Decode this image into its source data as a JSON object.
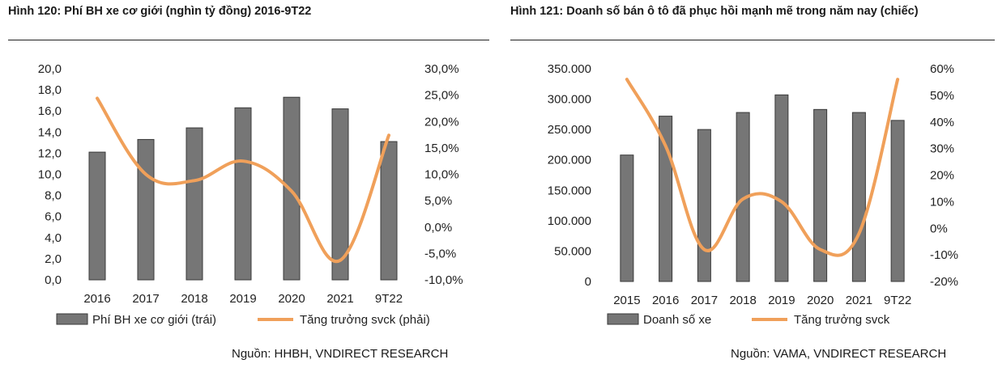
{
  "charts": {
    "left": {
      "title": "Hình 120: Phí BH xe cơ giới (nghìn tỷ đồng) 2016-9T22",
      "source": "Nguồn: HHBH, VNDIRECT RESEARCH"
    },
    "right": {
      "title": "Hình 121: Doanh số bán ô tô đã phục hồi mạnh mẽ trong năm nay (chiếc)",
      "source": "Nguồn: VAMA, VNDIRECT RESEARCH"
    }
  },
  "colors": {
    "bar": "#767676",
    "bar_edge": "#3a3a3a",
    "line": "#f0a05a"
  },
  "chart_data": [
    {
      "type": "bar",
      "categories": [
        "2016",
        "2017",
        "2018",
        "2019",
        "2020",
        "2021",
        "9T22"
      ],
      "series": [
        {
          "name": "Phí BH xe cơ giới (trái)",
          "type": "bar",
          "axis": "left",
          "values": [
            12.1,
            13.3,
            14.4,
            16.3,
            17.3,
            16.2,
            13.1
          ]
        },
        {
          "name": "Tăng trưởng svck (phải)",
          "type": "line",
          "axis": "right",
          "values": [
            24.4,
            10.0,
            8.8,
            12.5,
            6.8,
            -6.3,
            17.4
          ]
        }
      ],
      "y_left": {
        "min": 0,
        "max": 20,
        "ticks": [
          "0,0",
          "2,0",
          "4,0",
          "6,0",
          "8,0",
          "10,0",
          "12,0",
          "14,0",
          "16,0",
          "18,0",
          "20,0"
        ]
      },
      "y_right": {
        "min": -10,
        "max": 30,
        "ticks": [
          "-10,0%",
          "-5,0%",
          "0,0%",
          "5,0%",
          "10,0%",
          "15,0%",
          "20,0%",
          "25,0%",
          "30,0%"
        ]
      },
      "legend": "bottom"
    },
    {
      "type": "bar",
      "categories": [
        "2015",
        "2016",
        "2017",
        "2018",
        "2019",
        "2020",
        "2021",
        "9T22"
      ],
      "series": [
        {
          "name": "Doanh số xe",
          "type": "bar",
          "axis": "left",
          "values": [
            208000,
            272000,
            250000,
            278000,
            307000,
            283000,
            278000,
            265000
          ]
        },
        {
          "name": "Tăng trưởng svck",
          "type": "line",
          "axis": "right",
          "values": [
            56,
            31,
            -8,
            11,
            10,
            -8,
            -2,
            56
          ]
        }
      ],
      "y_left": {
        "min": 0,
        "max": 350000,
        "ticks": [
          "0",
          "50.000",
          "100.000",
          "150.000",
          "200.000",
          "250.000",
          "300.000",
          "350.000"
        ]
      },
      "y_right": {
        "min": -20,
        "max": 60,
        "ticks": [
          "-20%",
          "-10%",
          "0%",
          "10%",
          "20%",
          "30%",
          "40%",
          "50%",
          "60%"
        ]
      },
      "legend": "bottom"
    }
  ]
}
